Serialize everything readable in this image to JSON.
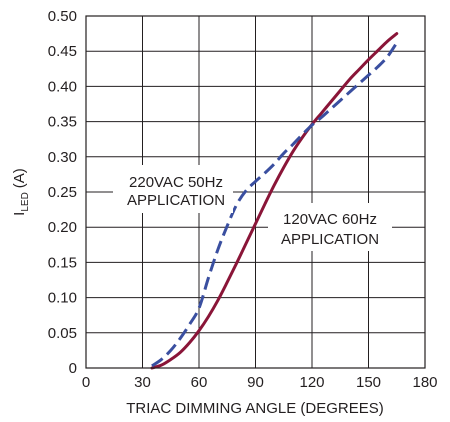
{
  "chart_data": {
    "type": "line",
    "title": "",
    "xlabel": "TRIAC DIMMING ANGLE (DEGREES)",
    "ylabel_main": "I",
    "ylabel_sub": "LED",
    "ylabel_unit": "(A)",
    "xlim": [
      0,
      180
    ],
    "ylim": [
      0,
      0.5
    ],
    "grid": true,
    "x_ticks": [
      0,
      30,
      60,
      90,
      120,
      150,
      180
    ],
    "x_tick_labels": [
      "0",
      "30",
      "60",
      "90",
      "120",
      "150",
      "180"
    ],
    "y_ticks": [
      0,
      0.05,
      0.1,
      0.15,
      0.2,
      0.25,
      0.3,
      0.35,
      0.4,
      0.45,
      0.5
    ],
    "y_tick_labels": [
      "0",
      "0.05",
      "0.10",
      "0.15",
      "0.20",
      "0.25",
      "0.30",
      "0.35",
      "0.40",
      "0.45",
      "0.50"
    ],
    "series": [
      {
        "name": "",
        "label_lines": [
          "220VAC 50Hz",
          "APPLICATION"
        ],
        "color": "#3a4fa0",
        "dash": true,
        "x": [
          35,
          40,
          45,
          50,
          55,
          60,
          65,
          70,
          75,
          80,
          85,
          90,
          95,
          100,
          105,
          110,
          115,
          120,
          125,
          130,
          135,
          140,
          145,
          150,
          155,
          160,
          165
        ],
        "y": [
          0.003,
          0.012,
          0.025,
          0.042,
          0.062,
          0.085,
          0.128,
          0.168,
          0.202,
          0.232,
          0.252,
          0.265,
          0.277,
          0.29,
          0.305,
          0.318,
          0.332,
          0.345,
          0.356,
          0.368,
          0.38,
          0.392,
          0.404,
          0.416,
          0.428,
          0.442,
          0.462
        ]
      },
      {
        "name": "",
        "label_lines": [
          "120VAC 60Hz",
          "APPLICATION"
        ],
        "color": "#8a1538",
        "dash": false,
        "x": [
          35,
          40,
          45,
          50,
          55,
          60,
          65,
          70,
          75,
          80,
          85,
          90,
          95,
          100,
          105,
          110,
          115,
          120,
          125,
          130,
          135,
          140,
          145,
          150,
          155,
          160,
          165
        ],
        "y": [
          0.0,
          0.004,
          0.012,
          0.022,
          0.036,
          0.053,
          0.073,
          0.096,
          0.122,
          0.149,
          0.177,
          0.205,
          0.233,
          0.26,
          0.285,
          0.308,
          0.328,
          0.346,
          0.362,
          0.378,
          0.394,
          0.41,
          0.424,
          0.438,
          0.451,
          0.464,
          0.475
        ]
      }
    ]
  }
}
